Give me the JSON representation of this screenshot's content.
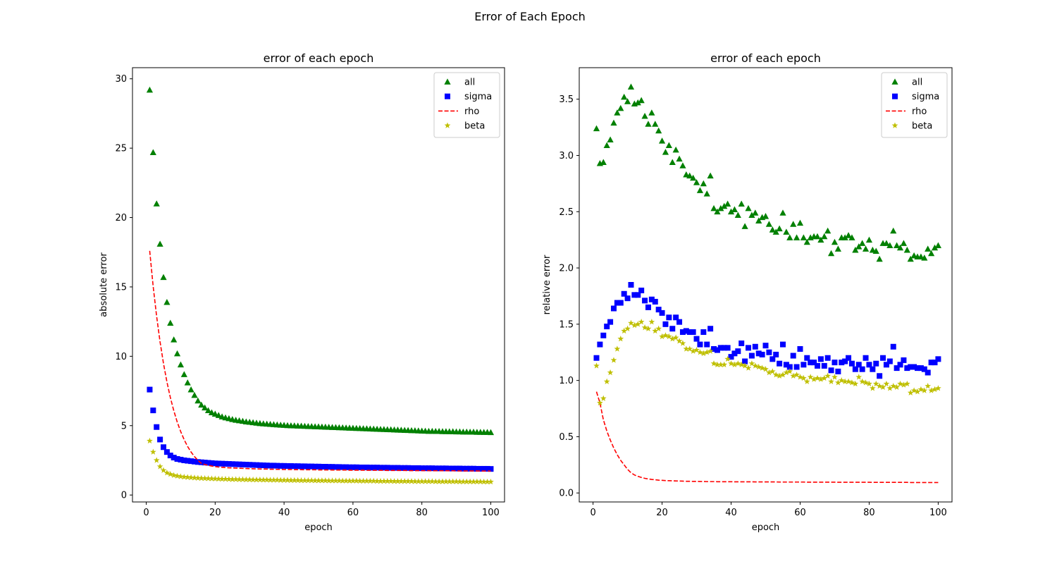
{
  "figure": {
    "suptitle": "Error of Each Epoch"
  },
  "legend_entries": [
    {
      "name": "all",
      "color": "#008000",
      "marker": "triangle"
    },
    {
      "name": "sigma",
      "color": "#0000ff",
      "marker": "square"
    },
    {
      "name": "rho",
      "color": "#ff0000",
      "marker": "dashed-line"
    },
    {
      "name": "beta",
      "color": "#bfbf00",
      "marker": "star"
    }
  ],
  "chart_data": [
    {
      "type": "scatter",
      "title": "error of each epoch",
      "xlabel": "epoch",
      "ylabel": "absolute error",
      "xlim": [
        -4,
        104
      ],
      "ylim": [
        -0.5,
        30.8
      ],
      "xticks": [
        0,
        20,
        40,
        60,
        80,
        100
      ],
      "yticks": [
        0,
        5,
        10,
        15,
        20,
        25,
        30
      ],
      "grid": false,
      "legend_position": "top-right",
      "series": [
        {
          "name": "all",
          "plot": "scatter",
          "marker": "triangle",
          "color": "#008000",
          "values": [
            29.2,
            24.7,
            21.0,
            18.1,
            15.7,
            13.9,
            12.4,
            11.2,
            10.2,
            9.4,
            8.7,
            8.1,
            7.6,
            7.2,
            6.8,
            6.5,
            6.3,
            6.1,
            5.95,
            5.85,
            5.75,
            5.65,
            5.58,
            5.52,
            5.46,
            5.41,
            5.37,
            5.33,
            5.29,
            5.26,
            5.23,
            5.2,
            5.17,
            5.15,
            5.13,
            5.11,
            5.09,
            5.07,
            5.05,
            5.04,
            5.02,
            5.01,
            5.0,
            4.99,
            4.98,
            4.97,
            4.96,
            4.95,
            4.94,
            4.93,
            4.92,
            4.91,
            4.9,
            4.89,
            4.88,
            4.87,
            4.86,
            4.85,
            4.84,
            4.83,
            4.82,
            4.81,
            4.8,
            4.79,
            4.78,
            4.77,
            4.76,
            4.75,
            4.74,
            4.73,
            4.72,
            4.71,
            4.7,
            4.69,
            4.68,
            4.67,
            4.66,
            4.65,
            4.64,
            4.63,
            4.62,
            4.61,
            4.61,
            4.6,
            4.6,
            4.59,
            4.59,
            4.58,
            4.58,
            4.57,
            4.57,
            4.56,
            4.56,
            4.55,
            4.55,
            4.54,
            4.54,
            4.53,
            4.53,
            4.52
          ]
        },
        {
          "name": "sigma",
          "plot": "scatter",
          "marker": "square",
          "color": "#0000ff",
          "values": [
            7.6,
            6.1,
            4.9,
            4.0,
            3.45,
            3.1,
            2.85,
            2.7,
            2.6,
            2.55,
            2.5,
            2.47,
            2.44,
            2.41,
            2.38,
            2.36,
            2.34,
            2.32,
            2.3,
            2.28,
            2.27,
            2.26,
            2.25,
            2.24,
            2.23,
            2.22,
            2.21,
            2.2,
            2.19,
            2.18,
            2.17,
            2.16,
            2.15,
            2.14,
            2.13,
            2.12,
            2.12,
            2.11,
            2.1,
            2.1,
            2.09,
            2.09,
            2.08,
            2.08,
            2.07,
            2.07,
            2.06,
            2.06,
            2.05,
            2.05,
            2.04,
            2.04,
            2.03,
            2.03,
            2.02,
            2.02,
            2.01,
            2.01,
            2.0,
            2.0,
            2.0,
            1.99,
            1.99,
            1.99,
            1.98,
            1.98,
            1.98,
            1.97,
            1.97,
            1.97,
            1.96,
            1.96,
            1.96,
            1.95,
            1.95,
            1.95,
            1.94,
            1.94,
            1.94,
            1.93,
            1.93,
            1.93,
            1.93,
            1.92,
            1.92,
            1.92,
            1.92,
            1.91,
            1.91,
            1.91,
            1.91,
            1.9,
            1.9,
            1.9,
            1.9,
            1.89,
            1.89,
            1.89,
            1.89,
            1.88
          ]
        },
        {
          "name": "rho",
          "plot": "line",
          "style": "dashed",
          "color": "#ff0000",
          "values": [
            17.6,
            15.05,
            12.9,
            11.05,
            9.48,
            8.15,
            7.02,
            6.07,
            5.25,
            4.57,
            3.99,
            3.5,
            3.1,
            2.77,
            2.5,
            2.28,
            2.2,
            2.14,
            2.09,
            2.05,
            2.02,
            2.0,
            1.98,
            1.96,
            1.95,
            1.94,
            1.93,
            1.92,
            1.91,
            1.9,
            1.89,
            1.88,
            1.88,
            1.87,
            1.87,
            1.86,
            1.86,
            1.85,
            1.85,
            1.84,
            1.84,
            1.84,
            1.83,
            1.83,
            1.83,
            1.82,
            1.82,
            1.82,
            1.82,
            1.81,
            1.81,
            1.81,
            1.81,
            1.8,
            1.8,
            1.8,
            1.8,
            1.8,
            1.79,
            1.79,
            1.79,
            1.79,
            1.79,
            1.78,
            1.78,
            1.78,
            1.78,
            1.78,
            1.78,
            1.77,
            1.77,
            1.77,
            1.77,
            1.77,
            1.77,
            1.76,
            1.76,
            1.76,
            1.76,
            1.76,
            1.76,
            1.76,
            1.75,
            1.75,
            1.75,
            1.75,
            1.75,
            1.75,
            1.75,
            1.74,
            1.74,
            1.74,
            1.74,
            1.74,
            1.74,
            1.74,
            1.73,
            1.73,
            1.73,
            1.73
          ]
        },
        {
          "name": "beta",
          "plot": "scatter",
          "marker": "star",
          "color": "#bfbf00",
          "values": [
            3.9,
            3.1,
            2.5,
            2.05,
            1.78,
            1.6,
            1.5,
            1.42,
            1.37,
            1.33,
            1.3,
            1.28,
            1.26,
            1.24,
            1.22,
            1.21,
            1.2,
            1.19,
            1.18,
            1.17,
            1.16,
            1.15,
            1.15,
            1.14,
            1.13,
            1.13,
            1.12,
            1.12,
            1.11,
            1.11,
            1.1,
            1.1,
            1.1,
            1.09,
            1.09,
            1.08,
            1.08,
            1.08,
            1.07,
            1.07,
            1.07,
            1.06,
            1.06,
            1.06,
            1.05,
            1.05,
            1.05,
            1.05,
            1.04,
            1.04,
            1.04,
            1.04,
            1.03,
            1.03,
            1.03,
            1.03,
            1.02,
            1.02,
            1.02,
            1.02,
            1.02,
            1.01,
            1.01,
            1.01,
            1.01,
            1.01,
            1.0,
            1.0,
            1.0,
            1.0,
            1.0,
            0.99,
            0.99,
            0.99,
            0.99,
            0.99,
            0.99,
            0.98,
            0.98,
            0.98,
            0.98,
            0.98,
            0.98,
            0.97,
            0.97,
            0.97,
            0.97,
            0.97,
            0.97,
            0.97,
            0.96,
            0.96,
            0.96,
            0.96,
            0.96,
            0.96,
            0.96,
            0.95,
            0.95,
            0.95
          ]
        }
      ]
    },
    {
      "type": "scatter",
      "title": "error of each epoch",
      "xlabel": "epoch",
      "ylabel": "relative error",
      "xlim": [
        -4,
        104
      ],
      "ylim": [
        -0.08,
        3.78
      ],
      "xticks": [
        0,
        20,
        40,
        60,
        80,
        100
      ],
      "yticks": [
        0.0,
        0.5,
        1.0,
        1.5,
        2.0,
        2.5,
        3.0,
        3.5
      ],
      "ytick_labels": [
        "0.0",
        "0.5",
        "1.0",
        "1.5",
        "2.0",
        "2.5",
        "3.0",
        "3.5"
      ],
      "grid": false,
      "legend_position": "top-right",
      "series": [
        {
          "name": "all",
          "plot": "scatter",
          "marker": "triangle",
          "color": "#008000",
          "values": [
            3.24,
            2.93,
            2.94,
            3.09,
            3.14,
            3.29,
            3.38,
            3.42,
            3.52,
            3.48,
            3.61,
            3.46,
            3.47,
            3.49,
            3.35,
            3.28,
            3.38,
            3.28,
            3.22,
            3.13,
            3.03,
            3.09,
            2.94,
            3.05,
            2.97,
            2.91,
            2.83,
            2.82,
            2.8,
            2.76,
            2.69,
            2.75,
            2.66,
            2.82,
            2.53,
            2.5,
            2.53,
            2.55,
            2.57,
            2.5,
            2.52,
            2.47,
            2.57,
            2.37,
            2.53,
            2.47,
            2.49,
            2.42,
            2.45,
            2.46,
            2.39,
            2.34,
            2.32,
            2.35,
            2.49,
            2.32,
            2.27,
            2.39,
            2.27,
            2.4,
            2.27,
            2.23,
            2.27,
            2.28,
            2.28,
            2.25,
            2.28,
            2.33,
            2.13,
            2.23,
            2.17,
            2.27,
            2.27,
            2.29,
            2.27,
            2.16,
            2.19,
            2.22,
            2.17,
            2.25,
            2.16,
            2.15,
            2.08,
            2.22,
            2.22,
            2.2,
            2.33,
            2.2,
            2.18,
            2.22,
            2.16,
            2.08,
            2.11,
            2.1,
            2.1,
            2.09,
            2.17,
            2.13,
            2.18,
            2.2
          ]
        },
        {
          "name": "sigma",
          "plot": "scatter",
          "marker": "square",
          "color": "#0000ff",
          "values": [
            1.2,
            1.32,
            1.4,
            1.48,
            1.52,
            1.64,
            1.69,
            1.69,
            1.77,
            1.73,
            1.85,
            1.76,
            1.76,
            1.8,
            1.71,
            1.65,
            1.72,
            1.7,
            1.63,
            1.6,
            1.5,
            1.56,
            1.46,
            1.56,
            1.52,
            1.43,
            1.44,
            1.43,
            1.43,
            1.37,
            1.32,
            1.43,
            1.32,
            1.46,
            1.28,
            1.27,
            1.29,
            1.29,
            1.29,
            1.21,
            1.24,
            1.26,
            1.33,
            1.17,
            1.29,
            1.22,
            1.3,
            1.24,
            1.23,
            1.31,
            1.25,
            1.19,
            1.23,
            1.15,
            1.32,
            1.14,
            1.12,
            1.22,
            1.12,
            1.28,
            1.14,
            1.2,
            1.16,
            1.16,
            1.13,
            1.19,
            1.13,
            1.2,
            1.09,
            1.16,
            1.08,
            1.16,
            1.17,
            1.2,
            1.15,
            1.1,
            1.14,
            1.1,
            1.2,
            1.14,
            1.1,
            1.15,
            1.04,
            1.2,
            1.14,
            1.17,
            1.3,
            1.11,
            1.14,
            1.18,
            1.11,
            1.12,
            1.12,
            1.11,
            1.11,
            1.1,
            1.07,
            1.16,
            1.16,
            1.19
          ]
        },
        {
          "name": "rho",
          "plot": "line",
          "style": "dashed",
          "color": "#ff0000",
          "values": [
            0.9,
            0.8,
            0.65,
            0.55,
            0.47,
            0.4,
            0.34,
            0.29,
            0.25,
            0.21,
            0.18,
            0.16,
            0.148,
            0.138,
            0.13,
            0.125,
            0.12,
            0.117,
            0.114,
            0.112,
            0.11,
            0.109,
            0.108,
            0.107,
            0.106,
            0.105,
            0.104,
            0.104,
            0.103,
            0.103,
            0.102,
            0.102,
            0.101,
            0.101,
            0.101,
            0.1,
            0.1,
            0.1,
            0.1,
            0.1,
            0.099,
            0.099,
            0.099,
            0.099,
            0.099,
            0.099,
            0.098,
            0.098,
            0.098,
            0.098,
            0.098,
            0.098,
            0.098,
            0.097,
            0.097,
            0.097,
            0.097,
            0.097,
            0.097,
            0.097,
            0.097,
            0.096,
            0.096,
            0.096,
            0.096,
            0.096,
            0.096,
            0.096,
            0.096,
            0.096,
            0.095,
            0.095,
            0.095,
            0.095,
            0.095,
            0.095,
            0.095,
            0.095,
            0.095,
            0.095,
            0.094,
            0.094,
            0.094,
            0.094,
            0.094,
            0.094,
            0.094,
            0.094,
            0.094,
            0.094,
            0.094,
            0.093,
            0.093,
            0.093,
            0.093,
            0.093,
            0.093,
            0.093,
            0.093,
            0.093
          ]
        },
        {
          "name": "beta",
          "plot": "scatter",
          "marker": "star",
          "color": "#bfbf00",
          "values": [
            1.13,
            0.8,
            0.84,
            0.99,
            1.07,
            1.18,
            1.28,
            1.37,
            1.44,
            1.46,
            1.51,
            1.49,
            1.5,
            1.52,
            1.47,
            1.46,
            1.52,
            1.44,
            1.46,
            1.39,
            1.4,
            1.39,
            1.37,
            1.38,
            1.35,
            1.33,
            1.28,
            1.28,
            1.26,
            1.27,
            1.25,
            1.24,
            1.25,
            1.26,
            1.15,
            1.14,
            1.14,
            1.14,
            1.19,
            1.15,
            1.14,
            1.15,
            1.14,
            1.13,
            1.11,
            1.15,
            1.13,
            1.12,
            1.11,
            1.1,
            1.07,
            1.08,
            1.05,
            1.04,
            1.05,
            1.07,
            1.08,
            1.04,
            1.05,
            1.03,
            1.02,
            0.99,
            1.03,
            1.01,
            1.02,
            1.01,
            1.02,
            1.04,
            0.99,
            1.03,
            0.98,
            1.0,
            0.99,
            0.99,
            0.98,
            0.97,
            1.03,
            0.99,
            0.98,
            0.97,
            0.93,
            0.97,
            0.95,
            0.94,
            0.97,
            0.93,
            0.95,
            0.94,
            0.97,
            0.96,
            0.97,
            0.89,
            0.91,
            0.9,
            0.92,
            0.91,
            0.95,
            0.91,
            0.92,
            0.93
          ]
        }
      ]
    }
  ]
}
